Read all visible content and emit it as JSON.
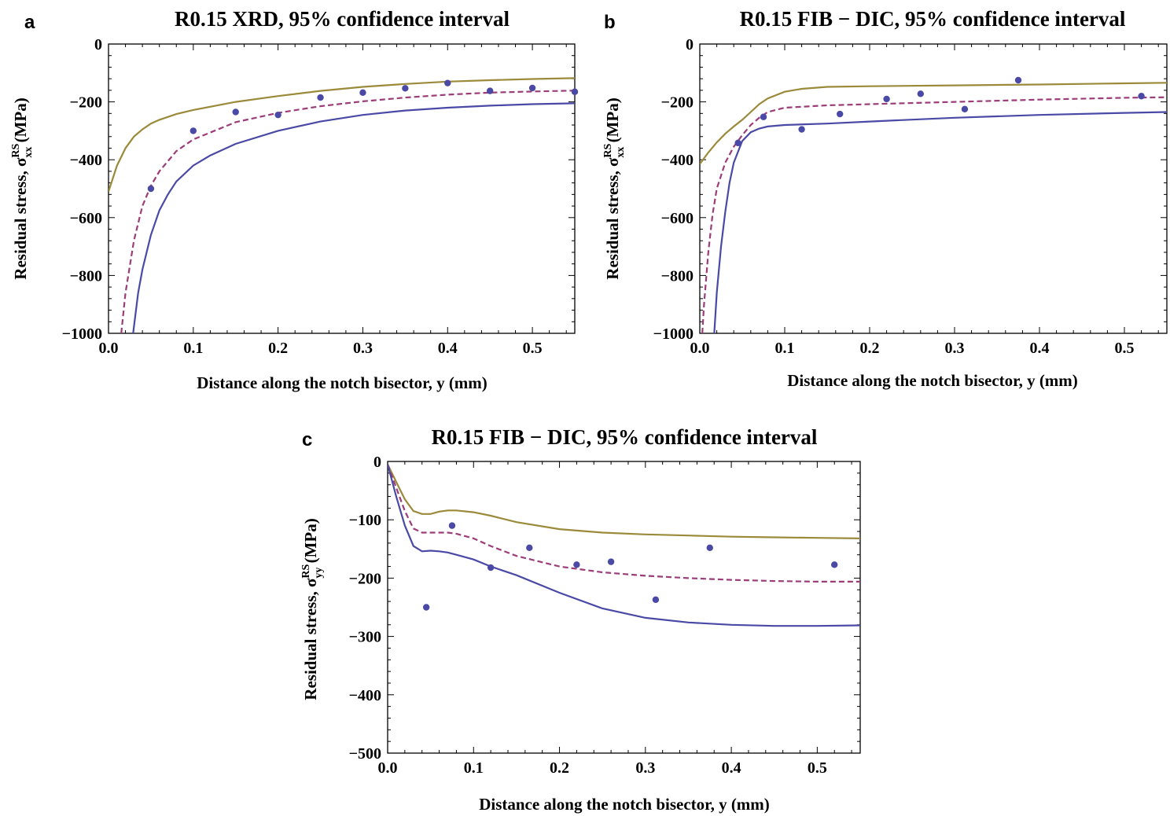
{
  "chart_data": [
    {
      "panel": "a",
      "type": "line",
      "title": "R0.15 XRD, 95% confidence interval",
      "xlabel": "Distance along the notch bisector, y (mm)",
      "ylabel": "Residual stress, σ",
      "ylabel_sup": "RS",
      "ylabel_sub": "xx",
      "ylabel_unit": " (MPa)",
      "xlim": [
        0,
        0.55
      ],
      "ylim": [
        -1000,
        0
      ],
      "xticks": [
        "0.0",
        "0.1",
        "0.2",
        "0.3",
        "0.4",
        "0.5"
      ],
      "xtick_values": [
        0,
        0.1,
        0.2,
        0.3,
        0.4,
        0.5
      ],
      "yticks": [
        "0",
        "−200",
        "−400",
        "−600",
        "−800",
        "−1000"
      ],
      "ytick_values": [
        0,
        -200,
        -400,
        -600,
        -800,
        -1000
      ],
      "series": [
        {
          "style": "solid",
          "color": "#9a8a3a",
          "x": [
            0,
            0.01,
            0.02,
            0.03,
            0.04,
            0.05,
            0.06,
            0.08,
            0.1,
            0.15,
            0.2,
            0.25,
            0.3,
            0.35,
            0.4,
            0.45,
            0.5,
            0.55
          ],
          "y": [
            -510,
            -420,
            -360,
            -320,
            -295,
            -275,
            -262,
            -242,
            -228,
            -200,
            -180,
            -162,
            -148,
            -138,
            -130,
            -125,
            -121,
            -118
          ]
        },
        {
          "style": "dashed",
          "color": "#9c3c78",
          "x": [
            0.015,
            0.02,
            0.03,
            0.04,
            0.05,
            0.06,
            0.08,
            0.1,
            0.15,
            0.2,
            0.25,
            0.3,
            0.35,
            0.4,
            0.45,
            0.5,
            0.55
          ],
          "y": [
            -1000,
            -860,
            -680,
            -560,
            -490,
            -440,
            -370,
            -330,
            -270,
            -238,
            -215,
            -198,
            -185,
            -175,
            -168,
            -164,
            -161
          ]
        },
        {
          "style": "solid",
          "color": "#4a4aa6",
          "x": [
            0.029,
            0.035,
            0.04,
            0.05,
            0.06,
            0.07,
            0.08,
            0.1,
            0.12,
            0.15,
            0.2,
            0.25,
            0.3,
            0.35,
            0.4,
            0.45,
            0.5,
            0.55
          ],
          "y": [
            -1000,
            -860,
            -780,
            -660,
            -575,
            -520,
            -475,
            -420,
            -385,
            -345,
            -300,
            -268,
            -245,
            -230,
            -220,
            -213,
            -208,
            -205
          ]
        }
      ],
      "points": {
        "color": "#4a4aa6",
        "x": [
          0.05,
          0.1,
          0.15,
          0.2,
          0.25,
          0.3,
          0.35,
          0.4,
          0.45,
          0.5,
          0.55
        ],
        "y": [
          -500,
          -300,
          -235,
          -245,
          -185,
          -168,
          -153,
          -135,
          -162,
          -152,
          -165
        ]
      }
    },
    {
      "panel": "b",
      "type": "line",
      "title": "R0.15 FIB − DIC, 95% confidence interval",
      "xlabel": "Distance along the notch bisector, y (mm)",
      "ylabel": "Residual stress, σ",
      "ylabel_sup": "RS",
      "ylabel_sub": "xx",
      "ylabel_unit": " (MPa)",
      "xlim": [
        0,
        0.55
      ],
      "ylim": [
        -1000,
        0
      ],
      "xticks": [
        "0.0",
        "0.1",
        "0.2",
        "0.3",
        "0.4",
        "0.5"
      ],
      "xtick_values": [
        0,
        0.1,
        0.2,
        0.3,
        0.4,
        0.5
      ],
      "yticks": [
        "0",
        "−200",
        "−400",
        "−600",
        "−800",
        "−1000"
      ],
      "ytick_values": [
        0,
        -200,
        -400,
        -600,
        -800,
        -1000
      ],
      "series": [
        {
          "style": "solid",
          "color": "#9a8a3a",
          "x": [
            0,
            0.01,
            0.02,
            0.03,
            0.04,
            0.05,
            0.06,
            0.07,
            0.08,
            0.1,
            0.12,
            0.15,
            0.2,
            0.3,
            0.4,
            0.5,
            0.55
          ],
          "y": [
            -415,
            -375,
            -340,
            -310,
            -285,
            -262,
            -235,
            -208,
            -188,
            -165,
            -155,
            -148,
            -146,
            -143,
            -140,
            -136,
            -134
          ]
        },
        {
          "style": "dashed",
          "color": "#9c3c78",
          "x": [
            0.003,
            0.005,
            0.01,
            0.015,
            0.02,
            0.03,
            0.04,
            0.05,
            0.06,
            0.07,
            0.08,
            0.1,
            0.15,
            0.2,
            0.3,
            0.4,
            0.5,
            0.55
          ],
          "y": [
            -1000,
            -900,
            -720,
            -590,
            -500,
            -410,
            -355,
            -315,
            -280,
            -255,
            -235,
            -220,
            -212,
            -208,
            -200,
            -192,
            -186,
            -184
          ]
        },
        {
          "style": "solid",
          "color": "#4a4aa6",
          "x": [
            0.017,
            0.02,
            0.025,
            0.03,
            0.035,
            0.04,
            0.05,
            0.06,
            0.07,
            0.08,
            0.1,
            0.15,
            0.2,
            0.3,
            0.4,
            0.5,
            0.55
          ],
          "y": [
            -1000,
            -860,
            -700,
            -580,
            -480,
            -410,
            -335,
            -305,
            -292,
            -285,
            -280,
            -275,
            -268,
            -255,
            -245,
            -238,
            -235
          ]
        }
      ],
      "points": {
        "color": "#4a4aa6",
        "x": [
          0.045,
          0.075,
          0.12,
          0.165,
          0.22,
          0.26,
          0.312,
          0.375,
          0.52
        ],
        "y": [
          -342,
          -252,
          -295,
          -242,
          -190,
          -172,
          -225,
          -125,
          -180
        ]
      }
    },
    {
      "panel": "c",
      "type": "line",
      "title": "R0.15 FIB − DIC, 95% confidence interval",
      "xlabel": "Distance along the notch bisector, y (mm)",
      "ylabel": "Residual stress, σ",
      "ylabel_sup": "RS",
      "ylabel_sub": "yy",
      "ylabel_unit": " (MPa)",
      "xlim": [
        0,
        0.55
      ],
      "ylim": [
        -500,
        0
      ],
      "xticks": [
        "0.0",
        "0.1",
        "0.2",
        "0.3",
        "0.4",
        "0.5"
      ],
      "xtick_values": [
        0,
        0.1,
        0.2,
        0.3,
        0.4,
        0.5
      ],
      "yticks": [
        "0",
        "−100",
        "−200",
        "−300",
        "−400",
        "−500"
      ],
      "ytick_values": [
        0,
        -100,
        -200,
        -300,
        -400,
        -500
      ],
      "series": [
        {
          "style": "solid",
          "color": "#9a8a3a",
          "x": [
            0,
            0.01,
            0.02,
            0.03,
            0.04,
            0.05,
            0.06,
            0.07,
            0.08,
            0.1,
            0.12,
            0.15,
            0.2,
            0.25,
            0.3,
            0.35,
            0.4,
            0.45,
            0.5,
            0.55
          ],
          "y": [
            -5,
            -35,
            -65,
            -85,
            -90,
            -90,
            -86,
            -84,
            -84,
            -87,
            -93,
            -104,
            -116,
            -122,
            -125,
            -127,
            -129,
            -130,
            -131,
            -132
          ]
        },
        {
          "style": "dashed",
          "color": "#9c3c78",
          "x": [
            0,
            0.01,
            0.02,
            0.03,
            0.04,
            0.05,
            0.06,
            0.07,
            0.08,
            0.1,
            0.12,
            0.15,
            0.2,
            0.25,
            0.3,
            0.35,
            0.4,
            0.45,
            0.5,
            0.55
          ],
          "y": [
            -5,
            -45,
            -85,
            -115,
            -122,
            -122,
            -122,
            -122,
            -124,
            -132,
            -145,
            -162,
            -180,
            -190,
            -196,
            -200,
            -203,
            -205,
            -206,
            -206
          ]
        },
        {
          "style": "solid",
          "color": "#4a4aa6",
          "x": [
            0,
            0.01,
            0.02,
            0.03,
            0.04,
            0.05,
            0.06,
            0.07,
            0.08,
            0.1,
            0.12,
            0.15,
            0.2,
            0.25,
            0.3,
            0.35,
            0.4,
            0.45,
            0.5,
            0.55
          ],
          "y": [
            -5,
            -60,
            -110,
            -145,
            -154,
            -153,
            -154,
            -156,
            -160,
            -168,
            -180,
            -195,
            -225,
            -252,
            -268,
            -276,
            -280,
            -282,
            -282,
            -281
          ]
        }
      ],
      "points": {
        "color": "#4a4aa6",
        "x": [
          0.045,
          0.075,
          0.12,
          0.165,
          0.22,
          0.26,
          0.312,
          0.375,
          0.52
        ],
        "y": [
          -250,
          -110,
          -182,
          -148,
          -177,
          -172,
          -237,
          -148,
          -177
        ]
      }
    }
  ]
}
